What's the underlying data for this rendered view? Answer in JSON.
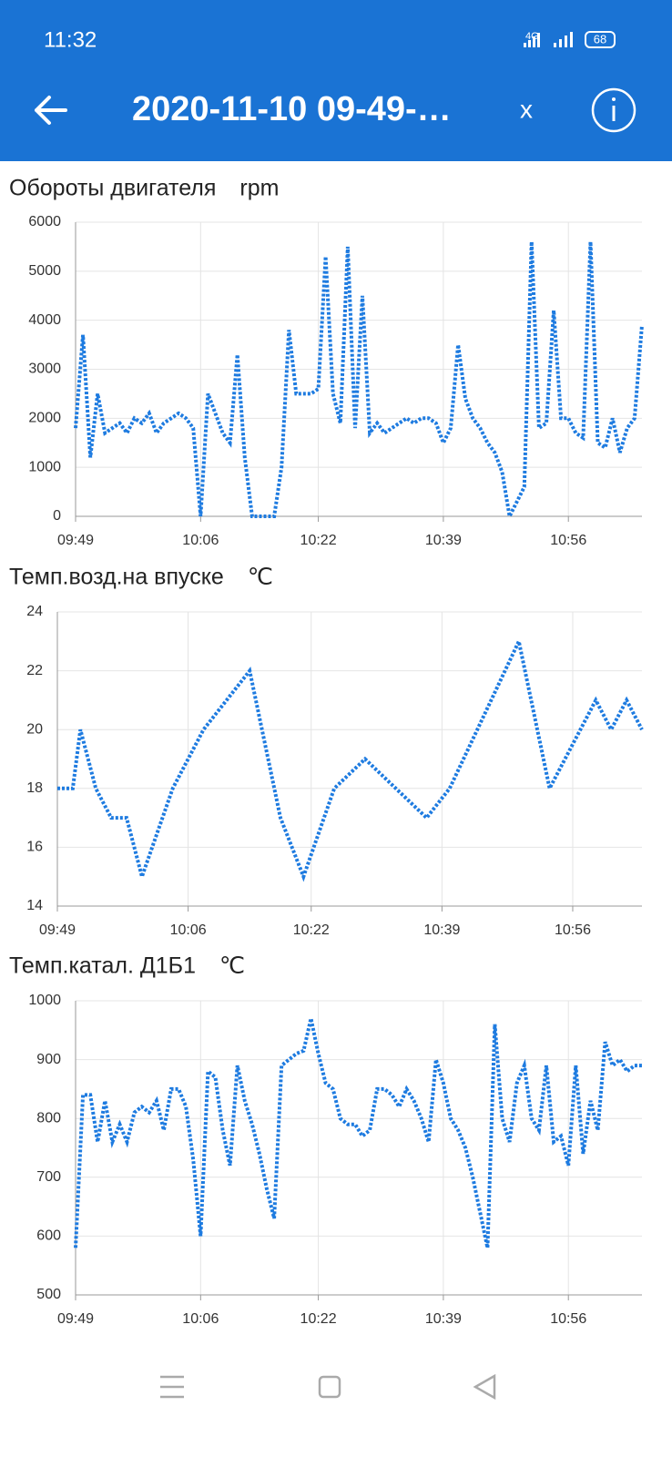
{
  "status_bar": {
    "time": "11:32",
    "network": "4G",
    "battery": "68"
  },
  "app_bar": {
    "title": "2020-11-10 09-49-…",
    "close": "x"
  },
  "chart_data": [
    {
      "type": "line",
      "title": "Обороты двигателя",
      "unit": "rpm",
      "x": [
        "09:49",
        "09:50",
        "09:51",
        "09:52",
        "09:53",
        "09:54",
        "09:55",
        "09:56",
        "09:57",
        "09:58",
        "09:59",
        "10:00",
        "10:01",
        "10:02",
        "10:03",
        "10:04",
        "10:05",
        "10:06",
        "10:07",
        "10:08",
        "10:09",
        "10:10",
        "10:11",
        "10:12",
        "10:13",
        "10:14",
        "10:15",
        "10:16",
        "10:17",
        "10:18",
        "10:19",
        "10:20",
        "10:21",
        "10:22",
        "10:23",
        "10:24",
        "10:25",
        "10:26",
        "10:27",
        "10:28",
        "10:29",
        "10:30",
        "10:31",
        "10:32",
        "10:33",
        "10:34",
        "10:35",
        "10:36",
        "10:37",
        "10:38",
        "10:39",
        "10:40",
        "10:41",
        "10:42",
        "10:43",
        "10:44",
        "10:45",
        "10:46",
        "10:47",
        "10:48",
        "10:49",
        "10:50",
        "10:51",
        "10:52",
        "10:53",
        "10:54",
        "10:55",
        "10:56",
        "10:57",
        "10:58",
        "10:59",
        "11:00",
        "11:01",
        "11:02",
        "11:03",
        "11:04",
        "11:05",
        "11:06"
      ],
      "series": [
        {
          "color": "#1e7be0",
          "values": [
            1800,
            3700,
            1200,
            2500,
            1700,
            1800,
            1900,
            1700,
            2000,
            1900,
            2100,
            1700,
            1900,
            2000,
            2100,
            2000,
            1800,
            0,
            2500,
            2100,
            1700,
            1500,
            3300,
            1200,
            0,
            0,
            0,
            0,
            1000,
            3800,
            2500,
            2500,
            2500,
            2600,
            5300,
            2500,
            1900,
            5500,
            1800,
            4500,
            1700,
            1900,
            1700,
            1800,
            1900,
            2000,
            1900,
            2000,
            2000,
            1900,
            1500,
            1800,
            3500,
            2400,
            2000,
            1800,
            1500,
            1300,
            900,
            0,
            300,
            600,
            5600,
            1800,
            1900,
            4200,
            2000,
            2000,
            1700,
            1600,
            5600,
            1500,
            1400,
            2000,
            1300,
            1800,
            2000,
            3900
          ]
        }
      ],
      "xlim": [
        "09:49",
        "11:06"
      ],
      "xticks": [
        "09:49",
        "10:06",
        "10:22",
        "10:39",
        "10:56"
      ],
      "ylim": [
        0,
        6000
      ],
      "yticks": [
        0,
        1000,
        2000,
        3000,
        4000,
        5000,
        6000
      ],
      "grid": true
    },
    {
      "type": "line",
      "title": "Темп.возд.на впуске",
      "unit": "℃",
      "x": [
        "09:49",
        "09:51",
        "09:52",
        "09:54",
        "09:56",
        "09:58",
        "10:00",
        "10:04",
        "10:08",
        "10:14",
        "10:18",
        "10:21",
        "10:25",
        "10:29",
        "10:37",
        "10:40",
        "10:49",
        "10:53",
        "10:59",
        "11:01",
        "11:03",
        "11:05"
      ],
      "series": [
        {
          "color": "#1e7be0",
          "values": [
            18,
            18,
            20,
            18,
            17,
            17,
            15,
            18,
            20,
            22,
            17,
            15,
            18,
            19,
            17,
            18,
            23,
            18,
            21,
            20,
            21,
            20
          ]
        }
      ],
      "xlim": [
        "09:49",
        "11:05"
      ],
      "xticks": [
        "09:49",
        "10:06",
        "10:22",
        "10:39",
        "10:56"
      ],
      "ylim": [
        14,
        24
      ],
      "yticks": [
        14,
        16,
        18,
        20,
        22,
        24
      ],
      "grid": true
    },
    {
      "type": "line",
      "title": "Темп.катал. Д1Б1",
      "unit": "℃",
      "x": [
        "09:49",
        "09:50",
        "09:51",
        "09:52",
        "09:53",
        "09:54",
        "09:55",
        "09:56",
        "09:57",
        "09:58",
        "09:59",
        "10:00",
        "10:01",
        "10:02",
        "10:03",
        "10:04",
        "10:05",
        "10:06",
        "10:07",
        "10:08",
        "10:09",
        "10:10",
        "10:11",
        "10:12",
        "10:13",
        "10:14",
        "10:15",
        "10:16",
        "10:17",
        "10:18",
        "10:19",
        "10:20",
        "10:21",
        "10:22",
        "10:23",
        "10:24",
        "10:25",
        "10:26",
        "10:27",
        "10:28",
        "10:29",
        "10:30",
        "10:31",
        "10:32",
        "10:33",
        "10:34",
        "10:35",
        "10:36",
        "10:37",
        "10:38",
        "10:39",
        "10:40",
        "10:41",
        "10:42",
        "10:43",
        "10:44",
        "10:45",
        "10:46",
        "10:47",
        "10:48",
        "10:49",
        "10:50",
        "10:51",
        "10:52",
        "10:53",
        "10:54",
        "10:55",
        "10:56",
        "10:57",
        "10:58",
        "10:59",
        "11:00",
        "11:01",
        "11:02",
        "11:03",
        "11:04",
        "11:05",
        "11:06"
      ],
      "series": [
        {
          "color": "#1e7be0",
          "values": [
            580,
            840,
            840,
            760,
            830,
            760,
            790,
            760,
            810,
            820,
            810,
            830,
            780,
            850,
            850,
            820,
            730,
            600,
            880,
            870,
            780,
            720,
            890,
            830,
            790,
            740,
            680,
            630,
            890,
            900,
            910,
            915,
            970,
            910,
            860,
            850,
            800,
            790,
            790,
            770,
            780,
            850,
            850,
            840,
            820,
            850,
            830,
            800,
            760,
            900,
            860,
            800,
            780,
            750,
            700,
            640,
            580,
            960,
            800,
            760,
            860,
            890,
            800,
            780,
            890,
            760,
            770,
            720,
            890,
            740,
            830,
            780,
            930,
            890,
            900,
            880,
            890,
            890
          ]
        }
      ],
      "xlim": [
        "09:49",
        "11:06"
      ],
      "xticks": [
        "09:49",
        "10:06",
        "10:22",
        "10:39",
        "10:56"
      ],
      "ylim": [
        500,
        1000
      ],
      "yticks": [
        500,
        600,
        700,
        800,
        900,
        1000
      ],
      "grid": true
    }
  ]
}
